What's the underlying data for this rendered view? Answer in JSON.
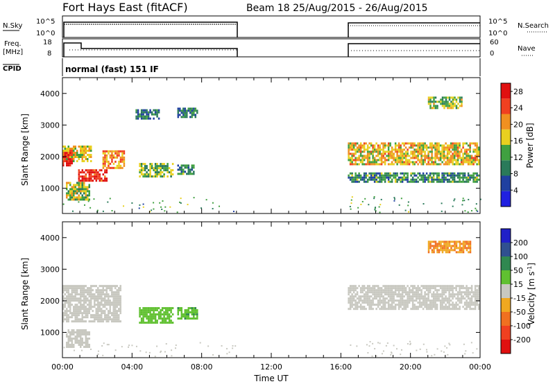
{
  "header": {
    "station": "Fort Hays East (fitACF)",
    "beam_info": "Beam 18 25/Aug/2015 - 26/Aug/2015"
  },
  "summary_panel": {
    "nsky_label": "N.Sky",
    "freq_label_line1": "Freq.",
    "freq_label_line2": "[MHz]",
    "cpid_label": "CPID",
    "nsearch_label": "N.Search",
    "nave_label": "Nave",
    "nsky_ticks": [
      "10^5",
      "10^0"
    ],
    "freq_ticks": [
      "18",
      "8"
    ],
    "nave_ticks": [
      "60",
      "0"
    ],
    "nsearch_ticks": [
      "10^5",
      "10^0"
    ],
    "cpid_text": "normal (fast) 151 IF"
  },
  "x_axis": {
    "label": "Time UT",
    "ticks": [
      "00:00",
      "04:00",
      "08:00",
      "12:00",
      "16:00",
      "20:00",
      "00:00"
    ]
  },
  "colors": {
    "power": [
      "#2020e0",
      "#2040a0",
      "#2a7a5a",
      "#40a040",
      "#e8d020",
      "#f09020",
      "#f04020",
      "#e01010"
    ],
    "velocity": [
      "#e01010",
      "#f04020",
      "#f07020",
      "#f0a820",
      "#c8c8c0",
      "#60c030",
      "#308850",
      "#305090",
      "#2020c8"
    ]
  },
  "chart_data": [
    {
      "type": "heatmap",
      "name": "power",
      "ylabel": "Slant Range [km]",
      "xlabel": "",
      "yticks": [
        "1000",
        "2000",
        "3000",
        "4000"
      ],
      "ylim": [
        200,
        4500
      ],
      "xlim_hours": [
        0,
        24
      ],
      "colorbar": {
        "label": "Power [dB]",
        "ticks": [
          "4",
          "8",
          "12",
          "16",
          "20",
          "24",
          "28"
        ],
        "range": [
          0,
          30
        ]
      },
      "regions": [
        {
          "t0": 0.0,
          "t1": 1.7,
          "r0": 1850,
          "r1": 2350,
          "level": 0.6
        },
        {
          "t0": 0.0,
          "t1": 0.6,
          "r0": 1700,
          "r1": 2150,
          "level": 0.9
        },
        {
          "t0": 0.9,
          "t1": 2.6,
          "r0": 1200,
          "r1": 1600,
          "level": 0.9
        },
        {
          "t0": 2.3,
          "t1": 3.6,
          "r0": 1600,
          "r1": 2200,
          "level": 0.7
        },
        {
          "t0": 0.2,
          "t1": 1.6,
          "r0": 600,
          "r1": 1200,
          "level": 0.5
        },
        {
          "t0": 4.4,
          "t1": 6.4,
          "r0": 1350,
          "r1": 1800,
          "level": 0.45
        },
        {
          "t0": 6.6,
          "t1": 7.6,
          "r0": 1400,
          "r1": 1750,
          "level": 0.35
        },
        {
          "t0": 4.2,
          "t1": 5.6,
          "r0": 3200,
          "r1": 3500,
          "level": 0.3
        },
        {
          "t0": 6.6,
          "t1": 7.8,
          "r0": 3250,
          "r1": 3550,
          "level": 0.3
        },
        {
          "t0": 16.4,
          "t1": 24.0,
          "r0": 1750,
          "r1": 2450,
          "level": 0.6
        },
        {
          "t0": 16.4,
          "t1": 24.0,
          "r0": 1150,
          "r1": 1500,
          "level": 0.35
        },
        {
          "t0": 21.0,
          "t1": 23.0,
          "r0": 3500,
          "r1": 3900,
          "level": 0.5
        }
      ]
    },
    {
      "type": "heatmap",
      "name": "velocity",
      "ylabel": "Slant Range [km]",
      "xlabel": "Time UT",
      "yticks": [
        "1000",
        "2000",
        "3000",
        "4000"
      ],
      "ylim": [
        200,
        4500
      ],
      "xlim_hours": [
        0,
        24
      ],
      "colorbar": {
        "label": "Velocity [m s-1]",
        "ticks": [
          "200",
          "100",
          "50",
          "15",
          "-15",
          "-50",
          "-100",
          "-200"
        ],
        "range": [
          -250,
          250
        ]
      },
      "regions": [
        {
          "t0": 0.0,
          "t1": 3.4,
          "r0": 1300,
          "r1": 2500,
          "value": 0
        },
        {
          "t0": 0.2,
          "t1": 1.6,
          "r0": 500,
          "r1": 1100,
          "value": 0
        },
        {
          "t0": 4.4,
          "t1": 6.4,
          "r0": 1300,
          "r1": 1800,
          "value": 60
        },
        {
          "t0": 6.6,
          "t1": 7.8,
          "r0": 1400,
          "r1": 1800,
          "value": 70
        },
        {
          "t0": 16.4,
          "t1": 24.0,
          "r0": 1700,
          "r1": 2500,
          "value": 0
        },
        {
          "t0": 21.0,
          "t1": 23.5,
          "r0": 3500,
          "r1": 3900,
          "value": -80
        }
      ]
    }
  ]
}
